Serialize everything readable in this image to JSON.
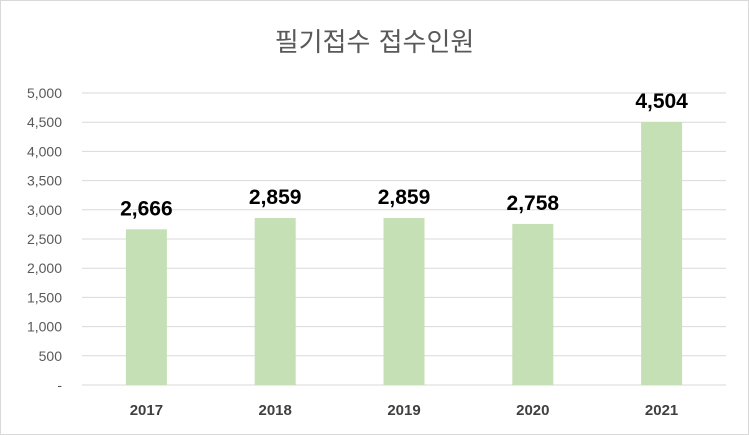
{
  "chart_data": {
    "type": "bar",
    "title": "필기접수 접수인원",
    "categories": [
      "2017",
      "2018",
      "2019",
      "2020",
      "2021"
    ],
    "values": [
      2666,
      2859,
      2859,
      2758,
      4504
    ],
    "data_labels": [
      "2,666",
      "2,859",
      "2,859",
      "2,758",
      "4,504"
    ],
    "ylim": [
      0,
      5000
    ],
    "yticks": [
      0,
      500,
      1000,
      1500,
      2000,
      2500,
      3000,
      3500,
      4000,
      4500,
      5000
    ],
    "ytick_labels": [
      "-",
      "500",
      "1,000",
      "1,500",
      "2,000",
      "2,500",
      "3,000",
      "3,500",
      "4,000",
      "4,500",
      "5,000"
    ],
    "grid": true,
    "legend": "none",
    "bar_color": "#c5e0b4",
    "grid_color": "#d9d9d9"
  }
}
